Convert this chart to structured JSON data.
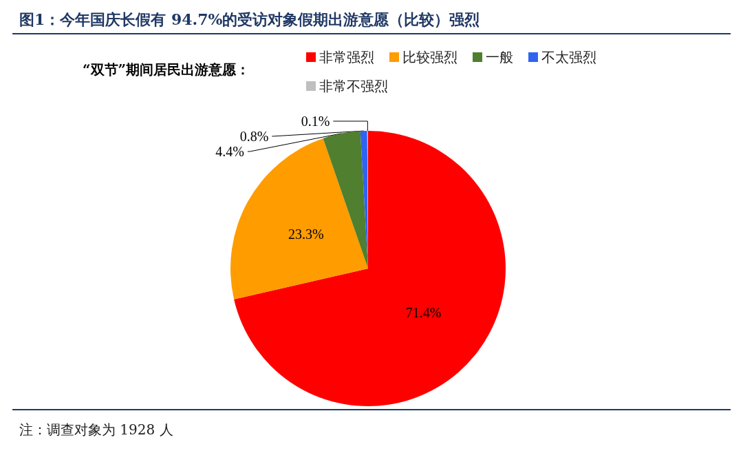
{
  "chart_data": {
    "type": "pie",
    "title": "图1：今年国庆长假有 94.7%的受访对象假期出游意愿（比较）强烈",
    "legend_title": "“双节”期间居民出游意愿：",
    "categories": [
      "非常强烈",
      "比较强烈",
      "一般",
      "不太强烈",
      "非常不强烈"
    ],
    "values": [
      71.4,
      23.3,
      4.4,
      0.8,
      0.1
    ],
    "colors": [
      "#ff0000",
      "#ff9c00",
      "#4f7f2f",
      "#2f64f0",
      "#bfbfbf"
    ],
    "value_labels": [
      "71.4%",
      "23.3%",
      "4.4%",
      "0.8%",
      "0.1%"
    ],
    "legend": "top",
    "annotations": [
      "注：调查对象为 1928 人"
    ]
  }
}
